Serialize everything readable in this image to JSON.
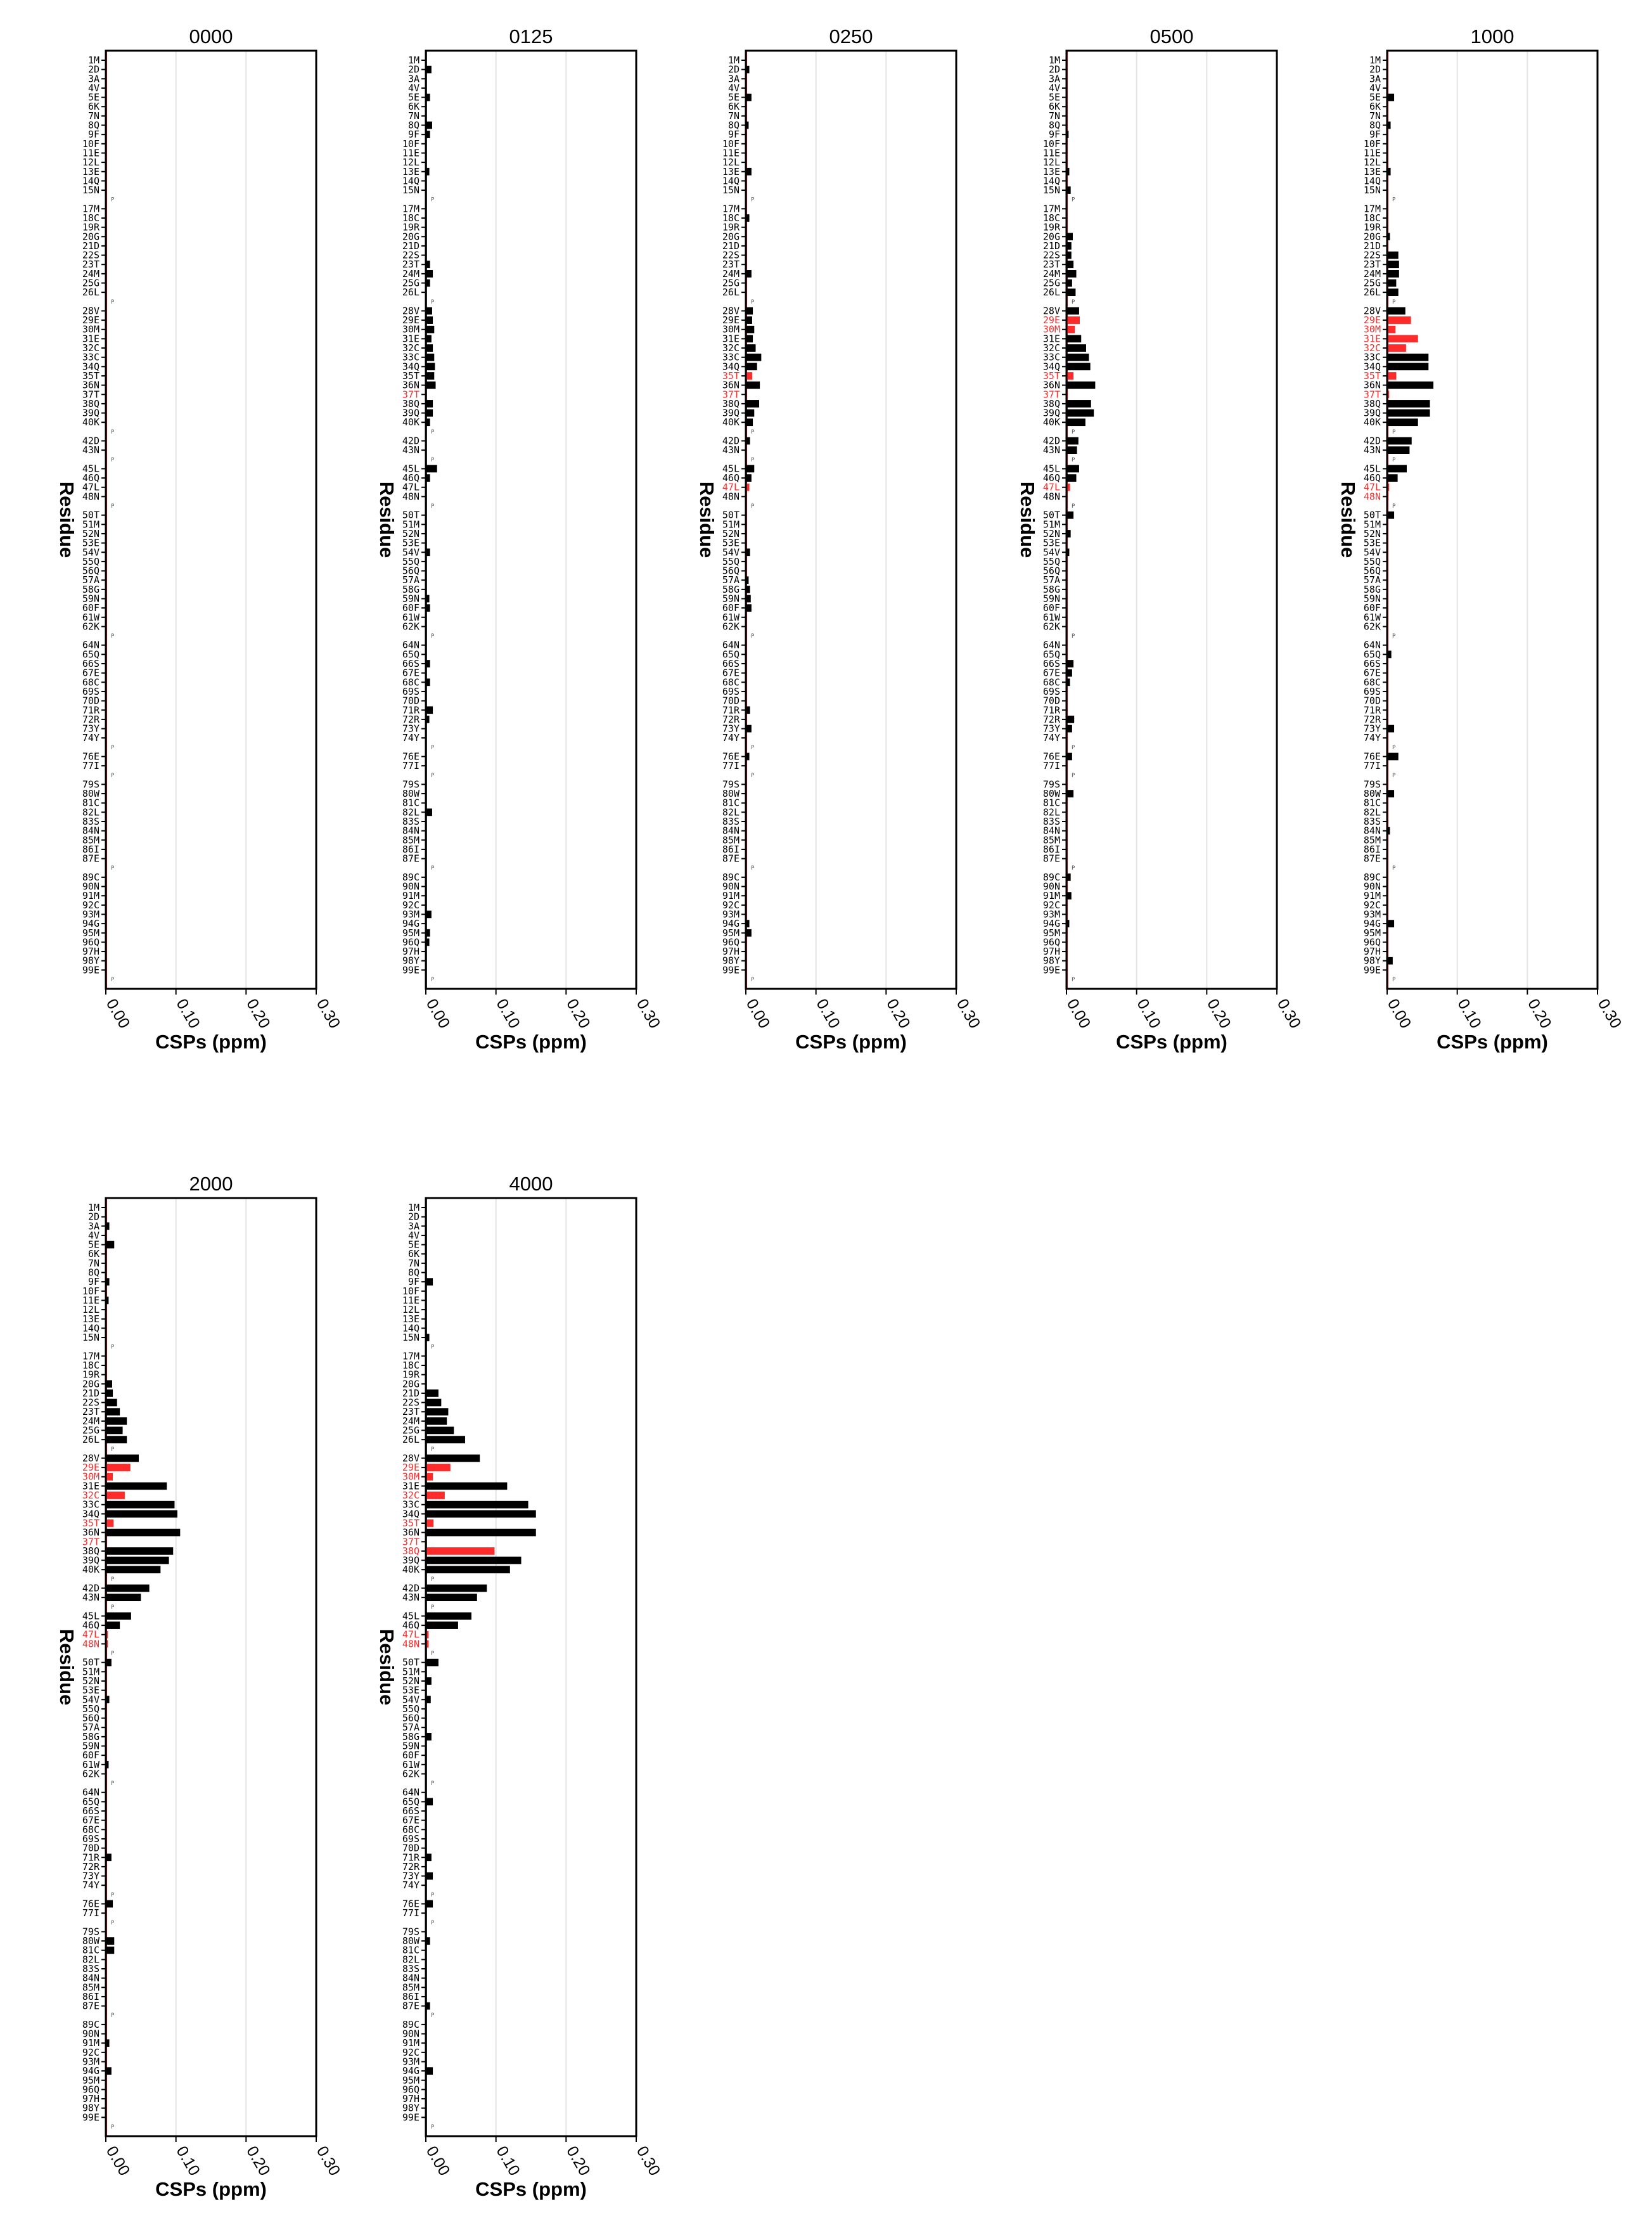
{
  "chart_data": {
    "type": "bar",
    "orientation": "horizontal",
    "xlabel": "CSPs (ppm)",
    "ylabel": "Residue",
    "xlim": [
      0,
      0.3
    ],
    "xticks": [
      "0.00",
      "0.10",
      "0.20",
      "0.30"
    ],
    "grid": "vertical",
    "colors": {
      "bar": "#000000",
      "highlight": "#ff2a2a",
      "zero_line": "#cc3333",
      "grid": "#e4e4e4"
    },
    "residues": [
      "1M",
      "2D",
      "3A",
      "4V",
      "5E",
      "6K",
      "7N",
      "8Q",
      "9F",
      "10F",
      "11E",
      "12L",
      "13E",
      "14Q",
      "15N",
      "P",
      "17M",
      "18C",
      "19R",
      "20G",
      "21D",
      "22S",
      "23T",
      "24M",
      "25G",
      "26L",
      "P",
      "28V",
      "29E",
      "30M",
      "31E",
      "32C",
      "33C",
      "34Q",
      "35T",
      "36N",
      "37T",
      "38Q",
      "39Q",
      "40K",
      "P",
      "42D",
      "43N",
      "P",
      "45L",
      "46Q",
      "47L",
      "48N",
      "P",
      "50T",
      "51M",
      "52N",
      "53E",
      "54V",
      "55Q",
      "56Q",
      "57A",
      "58G",
      "59N",
      "60F",
      "61W",
      "62K",
      "P",
      "64N",
      "65Q",
      "66S",
      "67E",
      "68C",
      "69S",
      "70D",
      "71R",
      "72R",
      "73Y",
      "74Y",
      "P",
      "76E",
      "77I",
      "P",
      "79S",
      "80W",
      "81C",
      "82L",
      "83S",
      "84N",
      "85M",
      "86I",
      "87E",
      "P",
      "89C",
      "90N",
      "91M",
      "92C",
      "93M",
      "94G",
      "95M",
      "96Q",
      "97H",
      "98Y",
      "99E",
      "P"
    ],
    "red_labels": {
      "0000": [],
      "0125": [
        "37T"
      ],
      "0250": [
        "35T",
        "37T",
        "47L"
      ],
      "0500": [
        "29E",
        "30M",
        "35T",
        "37T",
        "47L"
      ],
      "1000": [
        "29E",
        "30M",
        "31E",
        "32C",
        "35T",
        "37T",
        "47L",
        "48N"
      ],
      "2000": [
        "29E",
        "30M",
        "32C",
        "35T",
        "37T",
        "47L",
        "48N"
      ],
      "4000": [
        "29E",
        "30M",
        "32C",
        "35T",
        "37T",
        "38Q",
        "47L",
        "48N"
      ]
    },
    "series": [
      {
        "name": "0000",
        "values": {}
      },
      {
        "name": "0125",
        "values": {
          "2D": 0.008,
          "5E": 0.006,
          "8Q": 0.009,
          "9F": 0.006,
          "13E": 0.005,
          "23T": 0.006,
          "24M": 0.01,
          "25G": 0.006,
          "28V": 0.009,
          "29E": 0.01,
          "30M": 0.012,
          "31E": 0.008,
          "32C": 0.01,
          "33C": 0.012,
          "34Q": 0.013,
          "35T": 0.012,
          "36N": 0.014,
          "38Q": 0.01,
          "39Q": 0.01,
          "40K": 0.006,
          "45L": 0.016,
          "46Q": 0.006,
          "54V": 0.006,
          "59N": 0.005,
          "60F": 0.006,
          "66S": 0.006,
          "68C": 0.006,
          "71R": 0.01,
          "72R": 0.005,
          "82L": 0.009,
          "93M": 0.008,
          "95M": 0.006,
          "96Q": 0.005
        }
      },
      {
        "name": "0250",
        "values": {
          "2D": 0.005,
          "5E": 0.008,
          "8Q": 0.004,
          "13E": 0.008,
          "18C": 0.005,
          "24M": 0.008,
          "28V": 0.01,
          "29E": 0.009,
          "30M": 0.012,
          "31E": 0.01,
          "32C": 0.014,
          "33C": 0.022,
          "34Q": 0.016,
          "35T": 0.009,
          "36N": 0.02,
          "38Q": 0.019,
          "39Q": 0.012,
          "40K": 0.01,
          "42D": 0.006,
          "45L": 0.012,
          "46Q": 0.008,
          "47L": 0.005,
          "54V": 0.006,
          "57A": 0.004,
          "58G": 0.006,
          "59N": 0.007,
          "60F": 0.008,
          "71R": 0.006,
          "73Y": 0.008,
          "76E": 0.005,
          "94G": 0.005,
          "95M": 0.008
        }
      },
      {
        "name": "0500",
        "values": {
          "9F": 0.003,
          "13E": 0.004,
          "15N": 0.006,
          "20G": 0.009,
          "21D": 0.007,
          "22S": 0.007,
          "23T": 0.01,
          "24M": 0.014,
          "25G": 0.008,
          "26L": 0.013,
          "28V": 0.018,
          "29E": 0.019,
          "30M": 0.012,
          "31E": 0.021,
          "32C": 0.028,
          "33C": 0.032,
          "34Q": 0.034,
          "35T": 0.01,
          "36N": 0.041,
          "37T": 0.002,
          "38Q": 0.035,
          "39Q": 0.039,
          "40K": 0.027,
          "42D": 0.017,
          "43N": 0.015,
          "45L": 0.018,
          "46Q": 0.014,
          "47L": 0.005,
          "50T": 0.01,
          "52N": 0.006,
          "54V": 0.004,
          "66S": 0.01,
          "67E": 0.008,
          "68C": 0.005,
          "72R": 0.011,
          "73Y": 0.008,
          "76E": 0.008,
          "80W": 0.01,
          "89C": 0.006,
          "91M": 0.007,
          "94G": 0.004
        }
      },
      {
        "name": "1000",
        "values": {
          "5E": 0.01,
          "8Q": 0.005,
          "13E": 0.005,
          "20G": 0.004,
          "22S": 0.016,
          "23T": 0.017,
          "24M": 0.017,
          "25G": 0.013,
          "26L": 0.016,
          "28V": 0.026,
          "29E": 0.034,
          "30M": 0.012,
          "31E": 0.044,
          "32C": 0.027,
          "33C": 0.059,
          "34Q": 0.059,
          "35T": 0.013,
          "36N": 0.066,
          "37T": 0.003,
          "38Q": 0.061,
          "39Q": 0.061,
          "40K": 0.044,
          "42D": 0.035,
          "43N": 0.032,
          "45L": 0.028,
          "46Q": 0.015,
          "47L": 0.003,
          "48N": 0.002,
          "50T": 0.01,
          "65Q": 0.006,
          "73Y": 0.01,
          "76E": 0.016,
          "80W": 0.01,
          "84N": 0.004,
          "94G": 0.01,
          "98Y": 0.008
        }
      },
      {
        "name": "2000",
        "values": {
          "3A": 0.005,
          "5E": 0.012,
          "9F": 0.005,
          "11E": 0.004,
          "20G": 0.009,
          "21D": 0.01,
          "22S": 0.016,
          "23T": 0.02,
          "24M": 0.03,
          "25G": 0.024,
          "26L": 0.03,
          "28V": 0.047,
          "29E": 0.035,
          "30M": 0.01,
          "31E": 0.087,
          "32C": 0.027,
          "33C": 0.098,
          "34Q": 0.102,
          "35T": 0.011,
          "36N": 0.106,
          "38Q": 0.096,
          "39Q": 0.09,
          "40K": 0.078,
          "42D": 0.062,
          "43N": 0.05,
          "45L": 0.036,
          "46Q": 0.02,
          "47L": 0.003,
          "48N": 0.003,
          "50T": 0.008,
          "54V": 0.005,
          "61W": 0.004,
          "71R": 0.008,
          "76E": 0.01,
          "80W": 0.012,
          "81C": 0.012,
          "91M": 0.005,
          "94G": 0.008
        }
      },
      {
        "name": "4000",
        "values": {
          "9F": 0.01,
          "15N": 0.005,
          "21D": 0.018,
          "22S": 0.022,
          "23T": 0.032,
          "24M": 0.03,
          "25G": 0.04,
          "26L": 0.056,
          "28V": 0.077,
          "29E": 0.035,
          "30M": 0.01,
          "31E": 0.116,
          "32C": 0.027,
          "33C": 0.146,
          "34Q": 0.157,
          "35T": 0.011,
          "36N": 0.157,
          "38Q": 0.098,
          "39Q": 0.136,
          "40K": 0.12,
          "42D": 0.087,
          "43N": 0.073,
          "45L": 0.065,
          "46Q": 0.046,
          "47L": 0.004,
          "48N": 0.004,
          "50T": 0.018,
          "52N": 0.008,
          "54V": 0.007,
          "58G": 0.008,
          "65Q": 0.01,
          "71R": 0.008,
          "73Y": 0.01,
          "76E": 0.01,
          "80W": 0.006,
          "87E": 0.006,
          "94G": 0.01
        }
      }
    ]
  }
}
